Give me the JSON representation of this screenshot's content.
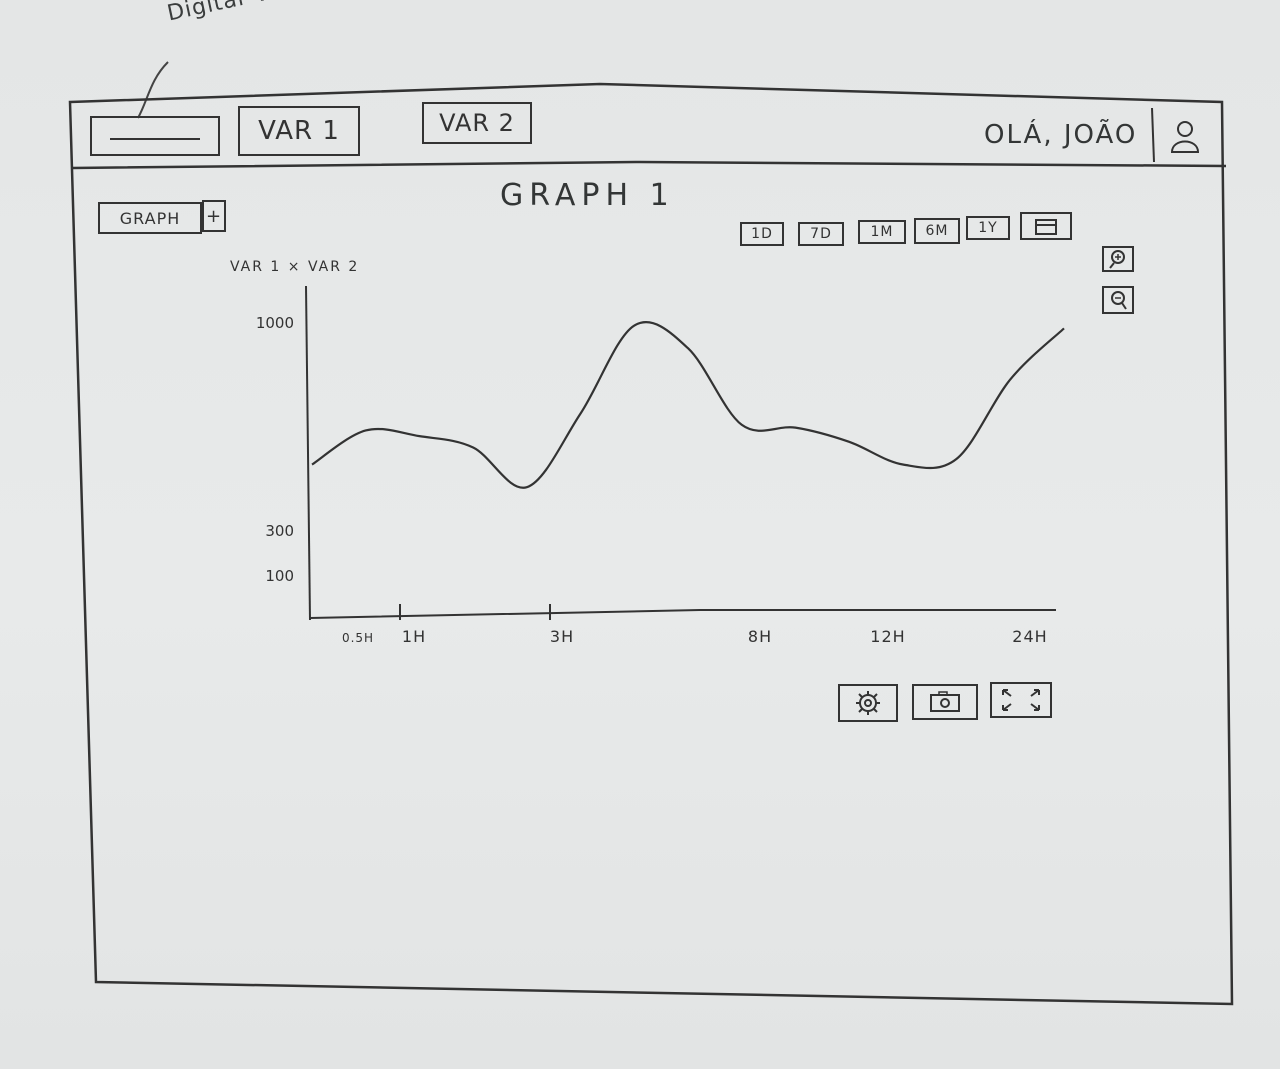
{
  "annotation": "Digitar variavel",
  "header": {
    "var_input_value": "",
    "var1_label": "VAR 1",
    "var2_label": "VAR 2",
    "greeting": "OLÁ, JOÃO",
    "user_icon": "user-icon"
  },
  "graph_tabs": {
    "tab_label": "GRAPH",
    "add_label": "+"
  },
  "graph_title": "GRAPH 1",
  "time_range": {
    "buttons": [
      "1D",
      "7D",
      "1M",
      "6M",
      "1Y"
    ],
    "calendar_icon": "calendar-icon"
  },
  "zoom": {
    "zoom_in_icon": "zoom-in-icon",
    "zoom_out_icon": "zoom-out-icon"
  },
  "bottom_tools": {
    "settings_icon": "gear-icon",
    "screenshot_icon": "camera-icon",
    "fullscreen_icon": "expand-icon"
  },
  "chart_data": {
    "type": "line",
    "title": "VAR 1 × VAR 2",
    "xlabel": "",
    "ylabel": "",
    "x_ticks": [
      "0.5H",
      "1H",
      "3H",
      "8H",
      "12H",
      "24H"
    ],
    "y_ticks": [
      "1000",
      "300",
      "100"
    ],
    "ylim": [
      0,
      1100
    ],
    "grid": false,
    "legend": "none",
    "series": [
      {
        "x": [
          0,
          0.5,
          1,
          1.5,
          2,
          2.5,
          3,
          3.5,
          4,
          4.5,
          5,
          5.5,
          6,
          6.5,
          7
        ],
        "values": [
          520,
          640,
          620,
          580,
          440,
          700,
          1010,
          930,
          660,
          650,
          600,
          520,
          540,
          820,
          1000
        ]
      }
    ]
  }
}
